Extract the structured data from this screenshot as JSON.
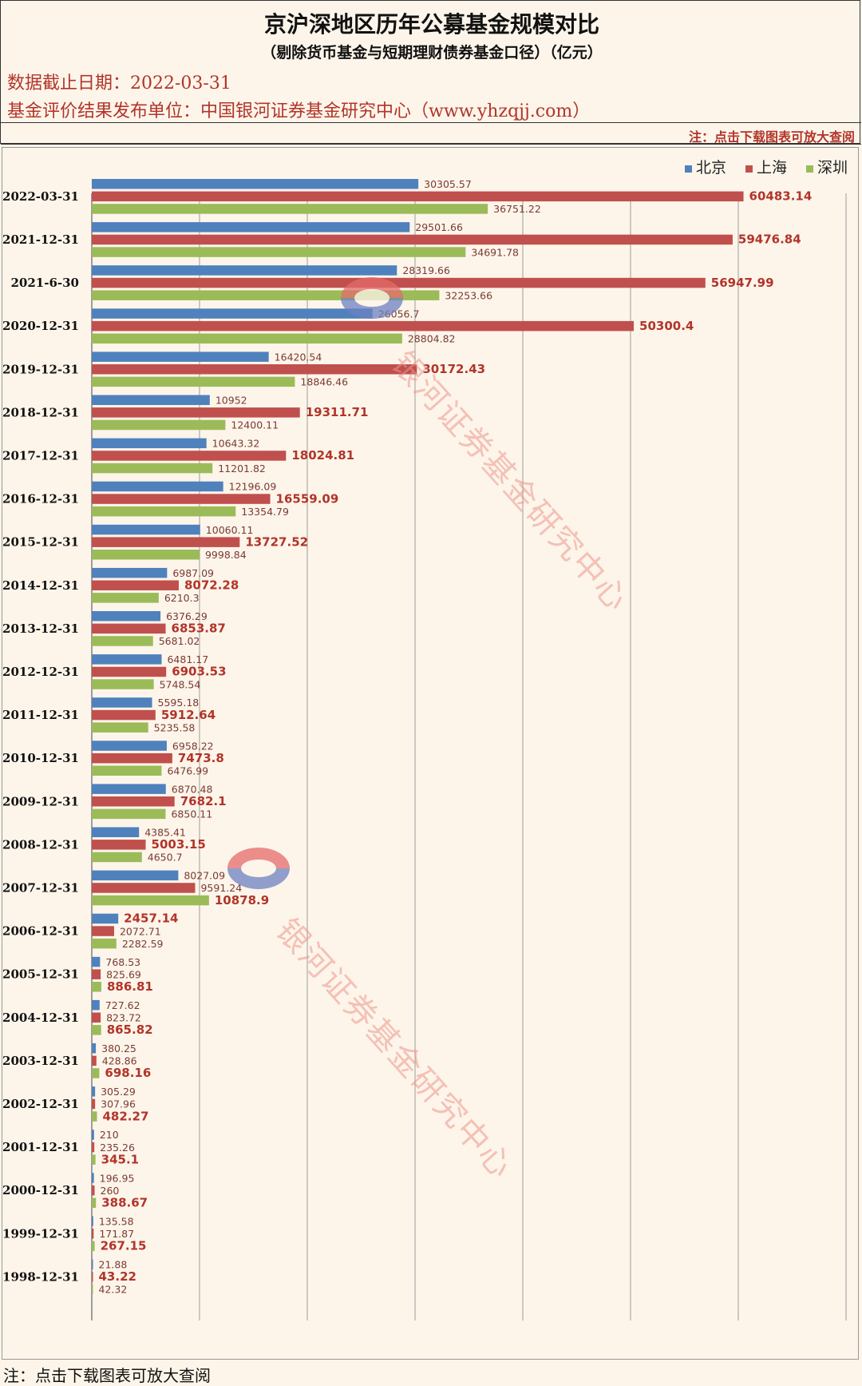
{
  "header": {
    "title": "京沪深地区历年公募基金规模对比",
    "subtitle": "（剔除货币基金与短期理财债券基金口径）（亿元）",
    "date_line": "数据截止日期：2022-03-31",
    "publisher_line": "基金评价结果发布单位：中国银河证券基金研究中心（www.yhzqjj.com）",
    "note": "注：点击下载图表可放大查阅"
  },
  "footer": {
    "note": "注：点击下载图表可放大查阅"
  },
  "watermark": {
    "text": "银河证券基金研究中心"
  },
  "colors": {
    "beijing": "#4f81bd",
    "shanghai": "#c0504d",
    "shenzhen": "#9bbb59",
    "label_red": "#b2342a"
  },
  "chart_data": {
    "type": "bar",
    "orientation": "horizontal",
    "title": "",
    "xlabel": "",
    "ylabel": "",
    "xlim": [
      0,
      70000
    ],
    "grid": true,
    "legend": "top-right",
    "categories": [
      "2022-03-31",
      "2021-12-31",
      "2021-6-30",
      "2020-12-31",
      "2019-12-31",
      "2018-12-31",
      "2017-12-31",
      "2016-12-31",
      "2015-12-31",
      "2014-12-31",
      "2013-12-31",
      "2012-12-31",
      "2011-12-31",
      "2010-12-31",
      "2009-12-31",
      "2008-12-31",
      "2007-12-31",
      "2006-12-31",
      "2005-12-31",
      "2004-12-31",
      "2003-12-31",
      "2002-12-31",
      "2001-12-31",
      "2000-12-31",
      "1999-12-31",
      "1998-12-31"
    ],
    "series": [
      {
        "name": "北京",
        "color": "#4f81bd",
        "values": [
          30305.57,
          29501.66,
          28319.66,
          26056.7,
          16420.54,
          10952,
          10643.32,
          12196.09,
          10060.11,
          6987.09,
          6376.29,
          6481.17,
          5595.18,
          6958.22,
          6870.48,
          4385.41,
          8027.09,
          2457.14,
          768.53,
          727.62,
          380.25,
          305.29,
          210,
          196.95,
          135.58,
          21.88
        ],
        "labels": [
          "30305.57",
          "29501.66",
          "28319.66",
          "26056.7",
          "16420.54",
          "10952",
          "10643.32",
          "12196.09",
          "10060.11",
          "6987.09",
          "6376.29",
          "6481.17",
          "5595.18",
          "6958.22",
          "6870.48",
          "4385.41",
          "8027.09",
          "2457.14",
          "768.53",
          "727.62",
          "380.25",
          "305.29",
          "210",
          "196.95",
          "135.58",
          "21.88"
        ]
      },
      {
        "name": "上海",
        "color": "#c0504d",
        "values": [
          60483.14,
          59476.84,
          56947.99,
          50300.4,
          30172.43,
          19311.71,
          18024.81,
          16559.09,
          13727.52,
          8072.28,
          6853.87,
          6903.53,
          5912.64,
          7473.8,
          7682.1,
          5003.15,
          9591.24,
          2072.71,
          825.69,
          823.72,
          428.86,
          307.96,
          235.26,
          260,
          171.87,
          43.22
        ],
        "labels": [
          "60483.14",
          "59476.84",
          "56947.99",
          "50300.4",
          "30172.43",
          "19311.71",
          "18024.81",
          "16559.09",
          "13727.52",
          "8072.28",
          "6853.87",
          "6903.53",
          "5912.64",
          "7473.8",
          "7682.1",
          "5003.15",
          "9591.24",
          "2072.71",
          "825.69",
          "823.72",
          "428.86",
          "307.96",
          "235.26",
          "260",
          "171.87",
          "43.22"
        ]
      },
      {
        "name": "深圳",
        "color": "#9bbb59",
        "values": [
          36751.22,
          34691.78,
          32253.66,
          28804.82,
          18846.46,
          12400.11,
          11201.82,
          13354.79,
          9998.84,
          6210.3,
          5681.02,
          5748.54,
          5235.58,
          6476.99,
          6850.11,
          4650.7,
          10878.9,
          2282.59,
          886.81,
          865.82,
          698.16,
          482.27,
          345.1,
          388.67,
          267.15,
          42.32
        ],
        "labels": [
          "36751.22",
          "34691.78",
          "32253.66",
          "28804.82",
          "18846.46",
          "12400.11",
          "11201.82",
          "13354.79",
          "9998.84",
          "6210.3",
          "5681.02",
          "5748.54",
          "5235.58",
          "6476.99",
          "6850.11",
          "4650.7",
          "10878.9",
          "2282.59",
          "886.81",
          "865.82",
          "698.16",
          "482.27",
          "345.1",
          "388.67",
          "267.15",
          "42.32"
        ]
      }
    ]
  }
}
